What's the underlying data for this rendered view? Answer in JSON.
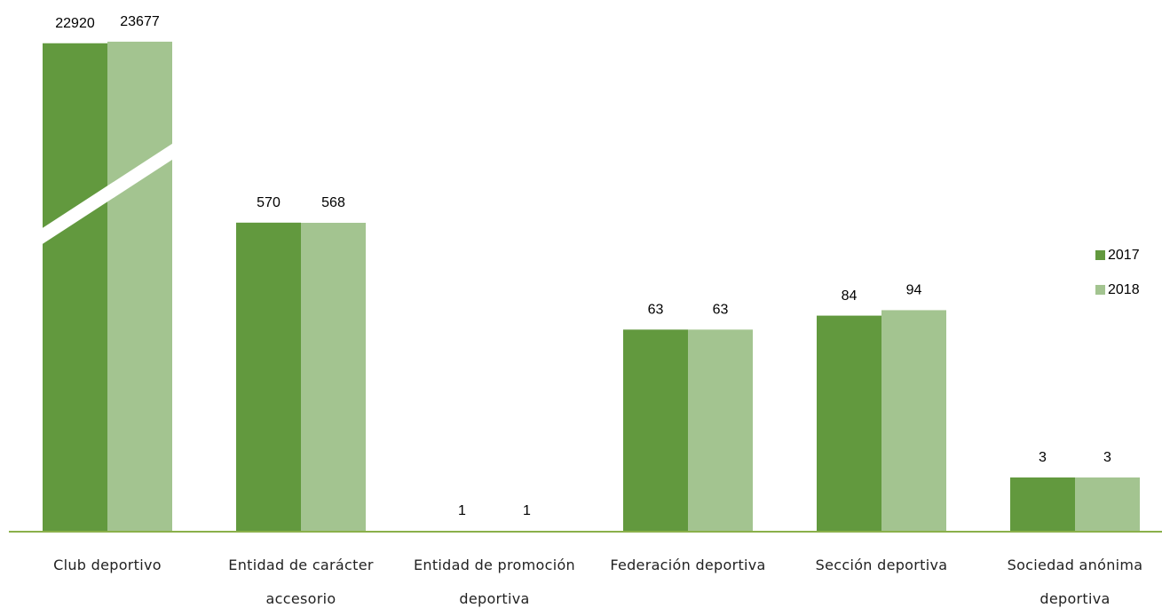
{
  "chart_data": {
    "type": "bar",
    "categories": [
      "Club deportivo",
      "Entidad de carácter accesorio",
      "Entidad de promoción deportiva",
      "Federación deportiva",
      "Sección deportiva",
      "Sociedad anónima deportiva"
    ],
    "series": [
      {
        "name": "2017",
        "color": "#62993e",
        "values": [
          22920,
          570,
          1,
          63,
          84,
          3
        ]
      },
      {
        "name": "2018",
        "color": "#a3c490",
        "values": [
          23677,
          568,
          1,
          63,
          94,
          3
        ]
      }
    ],
    "ylim": [
      1,
      30000
    ],
    "log_scale": true,
    "legend": "right"
  }
}
